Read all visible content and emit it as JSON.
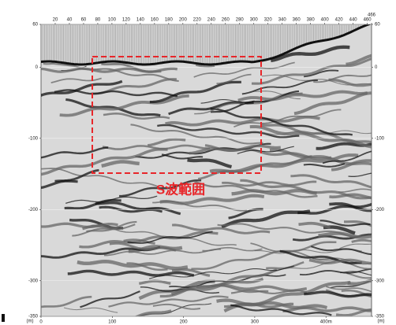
{
  "chart_data": {
    "type": "seismic-section",
    "annotation": "S波範囲",
    "xlim": [
      0,
      466
    ],
    "xticks": [
      20,
      40,
      60,
      80,
      100,
      120,
      140,
      160,
      180,
      200,
      220,
      240,
      260,
      280,
      300,
      320,
      340,
      360,
      380,
      400,
      420,
      440,
      460,
      466
    ],
    "x2lim": [
      0,
      464
    ],
    "x2ticks": [
      0,
      100,
      200,
      300,
      {
        "value": 400,
        "label": "400m"
      }
    ],
    "ylim": [
      -350,
      60
    ],
    "yticks": [
      60,
      0,
      -100,
      -200,
      -300,
      -350
    ],
    "y_unit": "(m)",
    "grid": true
  }
}
